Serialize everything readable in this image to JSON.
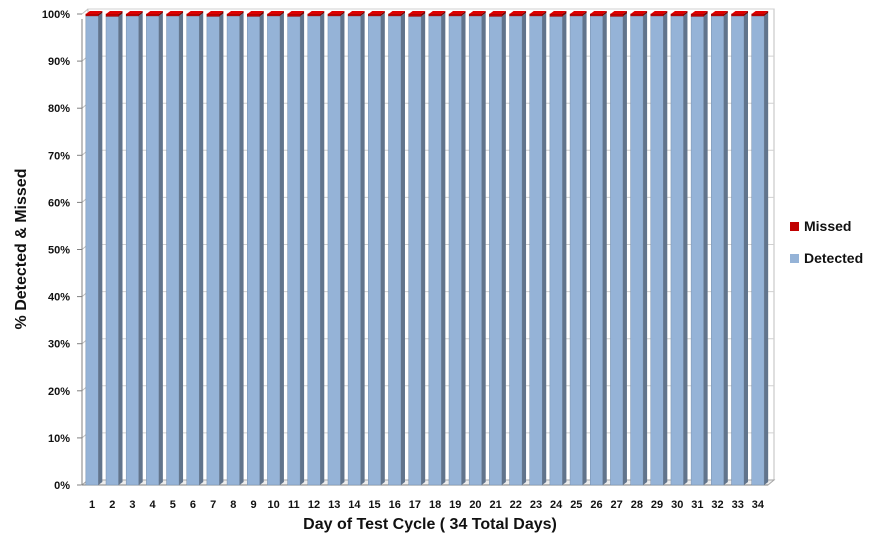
{
  "chart_data": {
    "type": "bar",
    "stacked": true,
    "categories": [
      "1",
      "2",
      "3",
      "4",
      "5",
      "6",
      "7",
      "8",
      "9",
      "10",
      "11",
      "12",
      "13",
      "14",
      "15",
      "16",
      "17",
      "18",
      "19",
      "20",
      "21",
      "22",
      "23",
      "24",
      "25",
      "26",
      "27",
      "28",
      "29",
      "30",
      "31",
      "32",
      "33",
      "34"
    ],
    "series": [
      {
        "name": "Detected",
        "color": "#95b3d7",
        "values": [
          99.6,
          99.5,
          99.6,
          99.6,
          99.6,
          99.6,
          99.5,
          99.6,
          99.5,
          99.6,
          99.5,
          99.6,
          99.6,
          99.6,
          99.6,
          99.6,
          99.5,
          99.6,
          99.6,
          99.6,
          99.5,
          99.6,
          99.6,
          99.5,
          99.6,
          99.6,
          99.5,
          99.6,
          99.6,
          99.6,
          99.5,
          99.6,
          99.6,
          99.6
        ]
      },
      {
        "name": "Missed",
        "color": "#c00000",
        "values": [
          0.4,
          0.5,
          0.4,
          0.4,
          0.4,
          0.4,
          0.5,
          0.4,
          0.5,
          0.4,
          0.5,
          0.4,
          0.4,
          0.4,
          0.4,
          0.4,
          0.5,
          0.4,
          0.4,
          0.4,
          0.5,
          0.4,
          0.4,
          0.5,
          0.4,
          0.4,
          0.5,
          0.4,
          0.4,
          0.4,
          0.5,
          0.4,
          0.4,
          0.4
        ]
      }
    ],
    "y_ticks": [
      "0%",
      "10%",
      "20%",
      "30%",
      "40%",
      "50%",
      "60%",
      "70%",
      "80%",
      "90%",
      "100%"
    ],
    "ylim": [
      0,
      100
    ],
    "xlabel": "Day of Test Cycle ( 34 Total Days)",
    "ylabel": "% Detected & Missed",
    "legend": {
      "position": "right",
      "order": [
        "Missed",
        "Detected"
      ]
    },
    "grid": true
  }
}
